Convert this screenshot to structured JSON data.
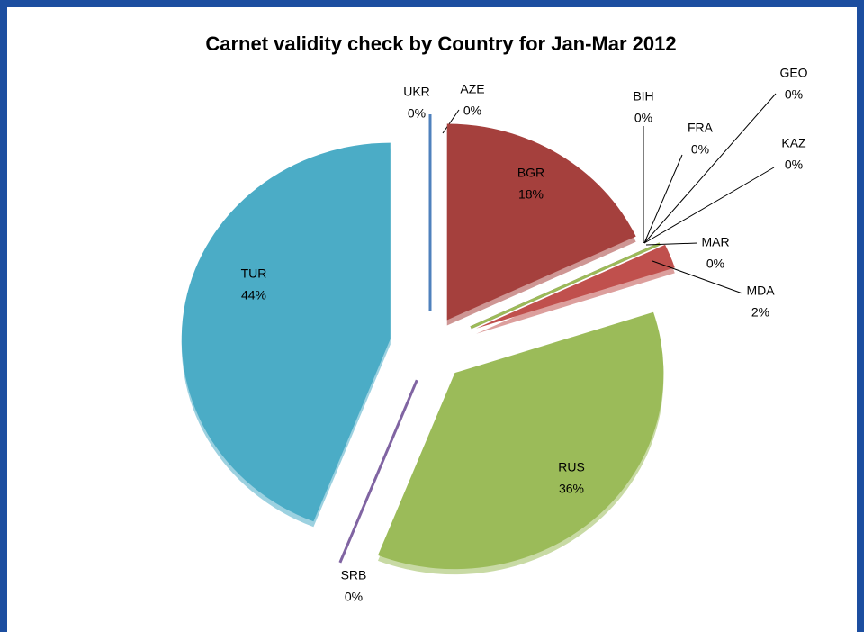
{
  "chart_data": {
    "type": "pie",
    "title": "Carnet validity check by Country for Jan-Mar 2012",
    "categories": [
      "AZE",
      "BGR",
      "BIH",
      "FRA",
      "GEO",
      "KAZ",
      "MAR",
      "MDA",
      "RUS",
      "SRB",
      "TUR",
      "UKR"
    ],
    "values": [
      0,
      18,
      0,
      0,
      0,
      0,
      0,
      2,
      36,
      0,
      44,
      0
    ],
    "value_labels": [
      "0%",
      "18%",
      "0%",
      "0%",
      "0%",
      "0%",
      "0%",
      "2%",
      "36%",
      "0%",
      "44%",
      "0%"
    ],
    "colors": [
      "#4bacc6",
      "#a5403d",
      "#4f81bd",
      "#8064a2",
      "#4bacc6",
      "#f79646",
      "#9bbb59",
      "#c0504d",
      "#9bbb59",
      "#8064a2",
      "#4bacc6",
      "#4f81bd"
    ]
  }
}
